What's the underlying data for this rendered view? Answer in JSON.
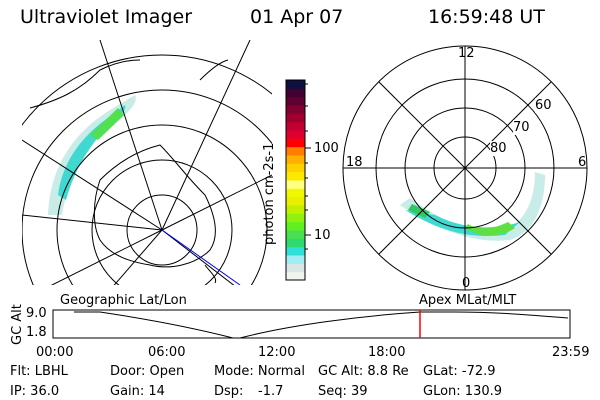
{
  "header": {
    "instrument": "Ultraviolet Imager",
    "date": "01 Apr 07",
    "time": "16:59:48 UT"
  },
  "geographic_panel": {
    "label": "Geographic Lat/Lon"
  },
  "apex_panel": {
    "label": "Apex MLat/MLT",
    "mlt_labels": [
      "12",
      "18",
      "6",
      "0"
    ],
    "mlat_labels": [
      "60",
      "70",
      "80"
    ]
  },
  "colorbar": {
    "unit_label": "photon cm-2s-1",
    "scale": "log",
    "tick_labels": [
      "100",
      "10"
    ],
    "colors": [
      "#eef5ee",
      "#d8e6e4",
      "#a0eef4",
      "#30e0d8",
      "#30d870",
      "#48e050",
      "#60f020",
      "#90f010",
      "#c0f000",
      "#e8f000",
      "#f0f800",
      "#ffff80",
      "#ffe800",
      "#ffd000",
      "#ffb000",
      "#ff8000",
      "#ff0000",
      "#e00030",
      "#c00030",
      "#a00030",
      "#800030",
      "#600030",
      "#400030",
      "#101040"
    ]
  },
  "altitude_plot": {
    "ylabel": "GC Alt",
    "yticks": [
      "9.0",
      "1.8"
    ],
    "xticks": [
      "00:00",
      "06:00",
      "12:00",
      "18:00",
      "23:59"
    ],
    "current_time_marker": "16:59",
    "marker_color": "#ff0000"
  },
  "info": {
    "filter": "Flt: LBHL",
    "ip": "IP: 36.0",
    "door": "Door: Open",
    "gain": "Gain: 14",
    "mode": "Mode: Normal",
    "dsp_label": "Dsp:",
    "dsp_value": "-1.7",
    "gc_alt": "GC Alt: 8.8 Re",
    "seq": "Seq: 39",
    "glat": "GLat: -72.9",
    "glon": "GLon: 130.9"
  }
}
